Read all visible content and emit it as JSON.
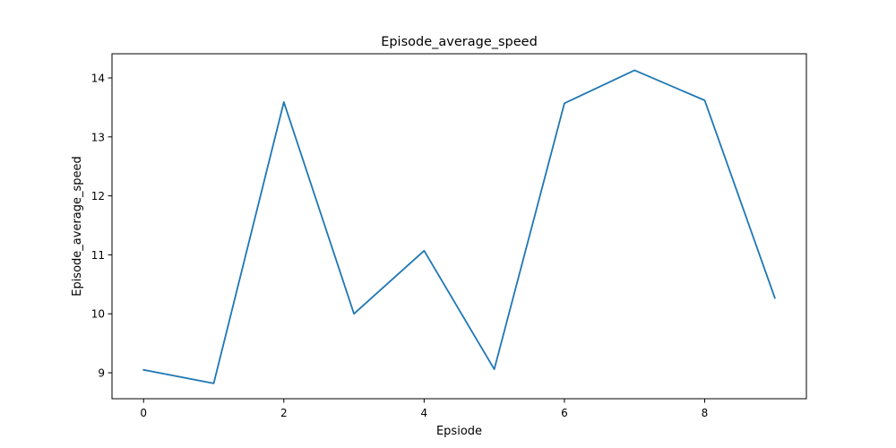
{
  "chart_data": {
    "type": "line",
    "title": "Episode_average_speed",
    "xlabel": "Epsiode",
    "ylabel": "Episode_average_speed",
    "xlim": [
      -0.45,
      9.45
    ],
    "ylim": [
      8.56,
      14.41
    ],
    "xticks": [
      0,
      2,
      4,
      6,
      8
    ],
    "yticks": [
      9,
      10,
      11,
      12,
      13,
      14
    ],
    "grid": false,
    "legend": "none",
    "line_color": "#1f77b4",
    "x": [
      0,
      1,
      2,
      3,
      4,
      5,
      6,
      7,
      8,
      9
    ],
    "series": [
      {
        "values": [
          9.05,
          8.82,
          13.59,
          10.0,
          11.07,
          9.06,
          13.57,
          14.13,
          13.62,
          10.27
        ]
      }
    ]
  }
}
